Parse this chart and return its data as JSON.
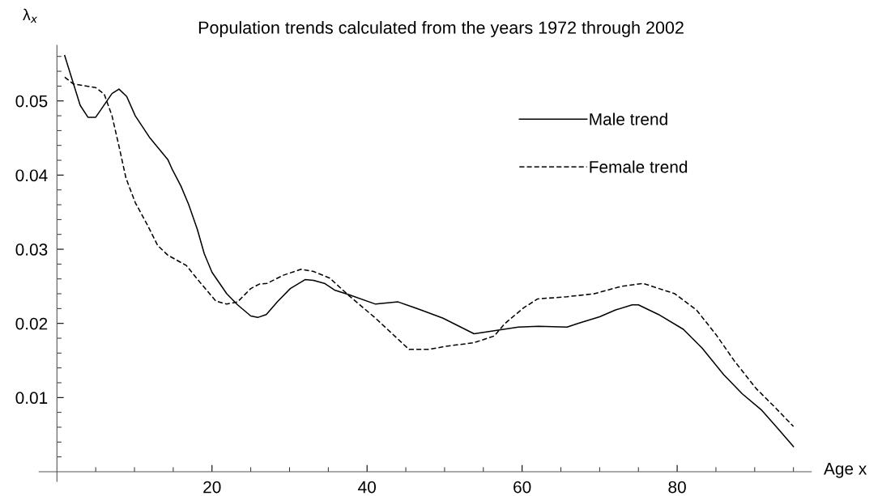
{
  "chart_data": {
    "type": "line",
    "title": "Population trends calculated from the years 1972 through 2002",
    "xlabel": "Age x",
    "ylabel": "λ$_{x}$",
    "xlim": [
      -2.3,
      97.3
    ],
    "ylim": [
      -0.0013,
      0.0575
    ],
    "xticks": [
      {
        "value": 5,
        "label": null
      },
      {
        "value": 10,
        "label": null
      },
      {
        "value": 15,
        "label": null
      },
      20,
      {
        "value": 25,
        "label": null
      },
      {
        "value": 30,
        "label": null
      },
      {
        "value": 35,
        "label": null
      },
      40,
      {
        "value": 45,
        "label": null
      },
      {
        "value": 50,
        "label": null
      },
      {
        "value": 55,
        "label": null
      },
      60,
      {
        "value": 65,
        "label": null
      },
      {
        "value": 70,
        "label": null
      },
      {
        "value": 75,
        "label": null
      },
      80,
      {
        "value": 85,
        "label": null
      },
      {
        "value": 90,
        "label": null
      },
      {
        "value": 95,
        "label": null
      }
    ],
    "yticks": [
      {
        "value": 0.002,
        "label": null
      },
      {
        "value": 0.004,
        "label": null
      },
      {
        "value": 0.006,
        "label": null
      },
      {
        "value": 0.008,
        "label": null
      },
      0.01,
      {
        "value": 0.012,
        "label": null
      },
      {
        "value": 0.014,
        "label": null
      },
      {
        "value": 0.016,
        "label": null
      },
      {
        "value": 0.018,
        "label": null
      },
      0.02,
      {
        "value": 0.022,
        "label": null
      },
      {
        "value": 0.024,
        "label": null
      },
      {
        "value": 0.026,
        "label": null
      },
      {
        "value": 0.028,
        "label": null
      },
      0.03,
      {
        "value": 0.032,
        "label": null
      },
      {
        "value": 0.034,
        "label": null
      },
      {
        "value": 0.036,
        "label": null
      },
      {
        "value": 0.038,
        "label": null
      },
      0.04,
      {
        "value": 0.042,
        "label": null
      },
      {
        "value": 0.044,
        "label": null
      },
      {
        "value": 0.046,
        "label": null
      },
      {
        "value": 0.048,
        "label": null
      },
      0.05,
      {
        "value": 0.052,
        "label": null
      },
      {
        "value": 0.054,
        "label": null
      },
      {
        "value": 0.056,
        "label": null
      }
    ],
    "legend": "top right",
    "marker": "none",
    "series": [
      {
        "name": "Male trend",
        "color": "#000000",
        "line_style": "solid",
        "x": [
          1.0,
          3.0,
          4.0,
          5.0,
          7.1,
          8.0,
          9.0,
          10.1,
          12.0,
          14.3,
          14.9,
          16.0,
          17.0,
          18.1,
          19.0,
          20.0,
          21.9,
          23.3,
          25.0,
          25.9,
          27.0,
          28.5,
          30.1,
          32.0,
          33.1,
          34.5,
          35.8,
          37.6,
          41.1,
          44.0,
          47.0,
          49.8,
          53.8,
          56.4,
          59.5,
          62.1,
          65.8,
          67.2,
          70.0,
          72.0,
          74.2,
          75.0,
          77.6,
          80.8,
          83.2,
          86.0,
          88.4,
          90.9,
          93.0,
          95.0
        ],
        "values": [
          0.0561,
          0.0494,
          0.0478,
          0.0478,
          0.051,
          0.0516,
          0.0506,
          0.048,
          0.045,
          0.0421,
          0.0407,
          0.0385,
          0.036,
          0.0327,
          0.0294,
          0.0269,
          0.024,
          0.0225,
          0.021,
          0.0208,
          0.0212,
          0.023,
          0.0247,
          0.0259,
          0.0258,
          0.0254,
          0.0245,
          0.0239,
          0.0226,
          0.0229,
          0.0218,
          0.0207,
          0.0186,
          0.019,
          0.0195,
          0.0196,
          0.0195,
          0.02,
          0.0209,
          0.0218,
          0.0225,
          0.0225,
          0.0212,
          0.0192,
          0.0167,
          0.0131,
          0.0105,
          0.0083,
          0.0058,
          0.0034
        ]
      },
      {
        "name": "Female trend",
        "color": "#000000",
        "line_style": "dashed",
        "x": [
          1.0,
          2.1,
          5.0,
          6.1,
          7.1,
          8.0,
          8.9,
          10.1,
          11.6,
          13.0,
          14.3,
          16.7,
          18.4,
          20.5,
          21.9,
          23.3,
          25.0,
          26.1,
          27.1,
          29.2,
          31.5,
          33.1,
          35.2,
          37.6,
          41.1,
          45.4,
          48.0,
          50.1,
          53.8,
          56.4,
          57.8,
          60.2,
          62.0,
          65.8,
          69.3,
          72.8,
          75.6,
          79.7,
          82.5,
          85.0,
          87.4,
          90.2,
          92.6,
          95.0
        ],
        "values": [
          0.0532,
          0.0523,
          0.0518,
          0.0509,
          0.048,
          0.0439,
          0.0396,
          0.0363,
          0.0334,
          0.0305,
          0.0292,
          0.0278,
          0.0256,
          0.023,
          0.0226,
          0.0229,
          0.0247,
          0.0253,
          0.0254,
          0.0265,
          0.0273,
          0.027,
          0.0261,
          0.0238,
          0.0207,
          0.0165,
          0.0165,
          0.0169,
          0.0174,
          0.0183,
          0.02,
          0.0221,
          0.0233,
          0.0236,
          0.024,
          0.025,
          0.0254,
          0.024,
          0.0218,
          0.0185,
          0.0149,
          0.0112,
          0.0087,
          0.0061
        ]
      }
    ]
  }
}
